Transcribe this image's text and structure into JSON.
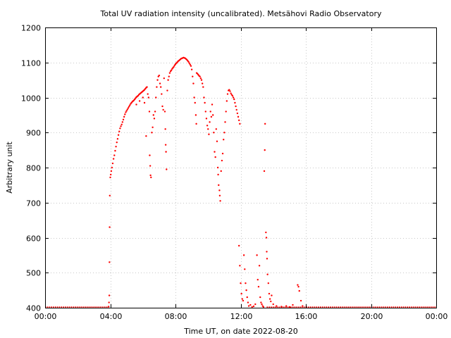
{
  "chart_data": {
    "type": "scatter",
    "title": "Total UV radiation intensity (uncalibrated). Metsähovi Radio Observatory",
    "xlabel": "Time UT, on date 2022-08-20",
    "ylabel": "Arbitrary unit",
    "x_unit": "hours UT",
    "xlim": [
      0,
      24
    ],
    "ylim": [
      400,
      1200
    ],
    "x_ticks": [
      0,
      4,
      8,
      12,
      16,
      20,
      24
    ],
    "x_tick_labels": [
      "00:00",
      "04:00",
      "08:00",
      "12:00",
      "16:00",
      "20:00",
      "00:00"
    ],
    "y_ticks": [
      400,
      500,
      600,
      700,
      800,
      900,
      1000,
      1100,
      1200
    ],
    "y_tick_labels": [
      "400",
      "500",
      "600",
      "700",
      "800",
      "900",
      "1000",
      "1100",
      "1200"
    ],
    "grid": true,
    "legend": "none",
    "series": [
      {
        "color": "#ff0000",
        "marker": "dot",
        "baseline_segments": [
          [
            0,
            3.9,
            401
          ],
          [
            13.6,
            24,
            401
          ]
        ],
        "points": [
          [
            3.9,
            403
          ],
          [
            3.92,
            415
          ],
          [
            3.94,
            435
          ],
          [
            3.95,
            530
          ],
          [
            3.96,
            630
          ],
          [
            3.97,
            720
          ],
          [
            4.0,
            772
          ],
          [
            4.03,
            780
          ],
          [
            4.06,
            790
          ],
          [
            4.1,
            800
          ],
          [
            4.15,
            812
          ],
          [
            4.2,
            825
          ],
          [
            4.25,
            835
          ],
          [
            4.3,
            848
          ],
          [
            4.35,
            860
          ],
          [
            4.4,
            872
          ],
          [
            4.45,
            882
          ],
          [
            4.5,
            893
          ],
          [
            4.55,
            903
          ],
          [
            4.6,
            912
          ],
          [
            4.65,
            918
          ],
          [
            4.7,
            923
          ],
          [
            4.75,
            930
          ],
          [
            4.8,
            937
          ],
          [
            4.85,
            945
          ],
          [
            4.9,
            952
          ],
          [
            4.95,
            958
          ],
          [
            5.0,
            962
          ],
          [
            5.05,
            966
          ],
          [
            5.1,
            970
          ],
          [
            5.15,
            974
          ],
          [
            5.2,
            978
          ],
          [
            5.25,
            982
          ],
          [
            5.3,
            985
          ],
          [
            5.35,
            988
          ],
          [
            5.4,
            990
          ],
          [
            5.45,
            992
          ],
          [
            5.5,
            995
          ],
          [
            5.55,
            998
          ],
          [
            5.6,
            1001
          ],
          [
            5.65,
            1003
          ],
          [
            5.7,
            1005
          ],
          [
            5.75,
            1008
          ],
          [
            5.8,
            1010
          ],
          [
            5.85,
            1012
          ],
          [
            5.9,
            1014
          ],
          [
            5.95,
            1016
          ],
          [
            6.0,
            1018
          ],
          [
            6.05,
            1020
          ],
          [
            6.1,
            1022
          ],
          [
            6.15,
            1025
          ],
          [
            6.2,
            1028
          ],
          [
            6.25,
            1030
          ],
          [
            5.6,
            980
          ],
          [
            5.8,
            990
          ],
          [
            6.0,
            1000
          ],
          [
            6.1,
            985
          ],
          [
            6.2,
            890
          ],
          [
            6.3,
            1010
          ],
          [
            6.35,
            1000
          ],
          [
            6.4,
            960
          ],
          [
            6.42,
            835
          ],
          [
            6.45,
            805
          ],
          [
            6.47,
            778
          ],
          [
            6.5,
            772
          ],
          [
            6.55,
            900
          ],
          [
            6.6,
            915
          ],
          [
            6.65,
            950
          ],
          [
            6.7,
            940
          ],
          [
            6.75,
            960
          ],
          [
            6.8,
            1000
          ],
          [
            6.85,
            1030
          ],
          [
            6.9,
            1050
          ],
          [
            6.95,
            1060
          ],
          [
            7.0,
            1063
          ],
          [
            7.05,
            1040
          ],
          [
            7.1,
            1030
          ],
          [
            7.15,
            1010
          ],
          [
            7.2,
            975
          ],
          [
            7.25,
            965
          ],
          [
            7.3,
            1055
          ],
          [
            7.35,
            960
          ],
          [
            7.38,
            910
          ],
          [
            7.4,
            865
          ],
          [
            7.42,
            845
          ],
          [
            7.45,
            795
          ],
          [
            7.5,
            1020
          ],
          [
            7.55,
            1050
          ],
          [
            7.6,
            1060
          ],
          [
            7.65,
            1070
          ],
          [
            7.7,
            1075
          ],
          [
            7.75,
            1078
          ],
          [
            7.8,
            1082
          ],
          [
            7.85,
            1085
          ],
          [
            7.9,
            1088
          ],
          [
            7.95,
            1092
          ],
          [
            8.0,
            1095
          ],
          [
            8.05,
            1098
          ],
          [
            8.1,
            1100
          ],
          [
            8.15,
            1103
          ],
          [
            8.2,
            1105
          ],
          [
            8.25,
            1107
          ],
          [
            8.3,
            1109
          ],
          [
            8.35,
            1111
          ],
          [
            8.4,
            1112
          ],
          [
            8.45,
            1113
          ],
          [
            8.5,
            1114
          ],
          [
            8.55,
            1113
          ],
          [
            8.6,
            1112
          ],
          [
            8.65,
            1110
          ],
          [
            8.7,
            1108
          ],
          [
            8.75,
            1105
          ],
          [
            8.8,
            1102
          ],
          [
            8.85,
            1098
          ],
          [
            8.9,
            1094
          ],
          [
            8.95,
            1090
          ],
          [
            9.0,
            1080
          ],
          [
            9.05,
            1060
          ],
          [
            9.1,
            1040
          ],
          [
            9.15,
            1000
          ],
          [
            9.2,
            985
          ],
          [
            9.25,
            950
          ],
          [
            9.28,
            925
          ],
          [
            9.3,
            1070
          ],
          [
            9.35,
            1068
          ],
          [
            9.4,
            1065
          ],
          [
            9.45,
            1062
          ],
          [
            9.5,
            1060
          ],
          [
            9.55,
            1055
          ],
          [
            9.6,
            1050
          ],
          [
            9.65,
            1040
          ],
          [
            9.7,
            1030
          ],
          [
            9.75,
            1000
          ],
          [
            9.8,
            985
          ],
          [
            9.85,
            960
          ],
          [
            9.9,
            940
          ],
          [
            9.95,
            920
          ],
          [
            10.0,
            910
          ],
          [
            10.05,
            895
          ],
          [
            10.1,
            930
          ],
          [
            10.15,
            960
          ],
          [
            10.2,
            945
          ],
          [
            10.25,
            980
          ],
          [
            10.3,
            950
          ],
          [
            10.35,
            900
          ],
          [
            10.4,
            845
          ],
          [
            10.45,
            830
          ],
          [
            10.5,
            910
          ],
          [
            10.55,
            875
          ],
          [
            10.6,
            800
          ],
          [
            10.62,
            780
          ],
          [
            10.65,
            750
          ],
          [
            10.7,
            735
          ],
          [
            10.72,
            720
          ],
          [
            10.75,
            705
          ],
          [
            10.8,
            790
          ],
          [
            10.85,
            820
          ],
          [
            10.9,
            840
          ],
          [
            10.95,
            880
          ],
          [
            11.0,
            900
          ],
          [
            11.05,
            930
          ],
          [
            11.1,
            960
          ],
          [
            11.15,
            990
          ],
          [
            11.2,
            1010
          ],
          [
            11.25,
            1020
          ],
          [
            11.3,
            1022
          ],
          [
            11.35,
            1018
          ],
          [
            11.4,
            1012
          ],
          [
            11.45,
            1008
          ],
          [
            11.5,
            1005
          ],
          [
            11.55,
            1000
          ],
          [
            11.6,
            995
          ],
          [
            11.65,
            985
          ],
          [
            11.7,
            975
          ],
          [
            11.75,
            965
          ],
          [
            11.8,
            955
          ],
          [
            11.85,
            945
          ],
          [
            11.9,
            935
          ],
          [
            11.95,
            925
          ],
          [
            11.9,
            577
          ],
          [
            11.95,
            520
          ],
          [
            12.0,
            470
          ],
          [
            12.05,
            440
          ],
          [
            12.1,
            425
          ],
          [
            12.15,
            420
          ],
          [
            12.2,
            550
          ],
          [
            12.25,
            510
          ],
          [
            12.3,
            470
          ],
          [
            12.35,
            450
          ],
          [
            12.4,
            430
          ],
          [
            12.45,
            415
          ],
          [
            12.5,
            405
          ],
          [
            12.6,
            408
          ],
          [
            12.7,
            402
          ],
          [
            12.8,
            404
          ],
          [
            12.9,
            410
          ],
          [
            13.0,
            550
          ],
          [
            13.05,
            480
          ],
          [
            13.1,
            460
          ],
          [
            13.15,
            520
          ],
          [
            13.2,
            430
          ],
          [
            13.25,
            415
          ],
          [
            13.3,
            410
          ],
          [
            13.35,
            405
          ],
          [
            13.4,
            402
          ],
          [
            13.45,
            790
          ],
          [
            13.48,
            850
          ],
          [
            13.5,
            925
          ],
          [
            13.55,
            615
          ],
          [
            13.58,
            600
          ],
          [
            13.6,
            560
          ],
          [
            13.62,
            540
          ],
          [
            13.65,
            495
          ],
          [
            13.7,
            470
          ],
          [
            13.75,
            440
          ],
          [
            13.8,
            425
          ],
          [
            13.85,
            418
          ],
          [
            13.9,
            435
          ],
          [
            14.0,
            410
          ],
          [
            14.2,
            405
          ],
          [
            14.5,
            403
          ],
          [
            14.8,
            405
          ],
          [
            15.0,
            402
          ],
          [
            15.2,
            408
          ],
          [
            15.5,
            465
          ],
          [
            15.55,
            460
          ],
          [
            15.6,
            448
          ],
          [
            15.7,
            420
          ],
          [
            15.8,
            405
          ]
        ]
      }
    ]
  }
}
